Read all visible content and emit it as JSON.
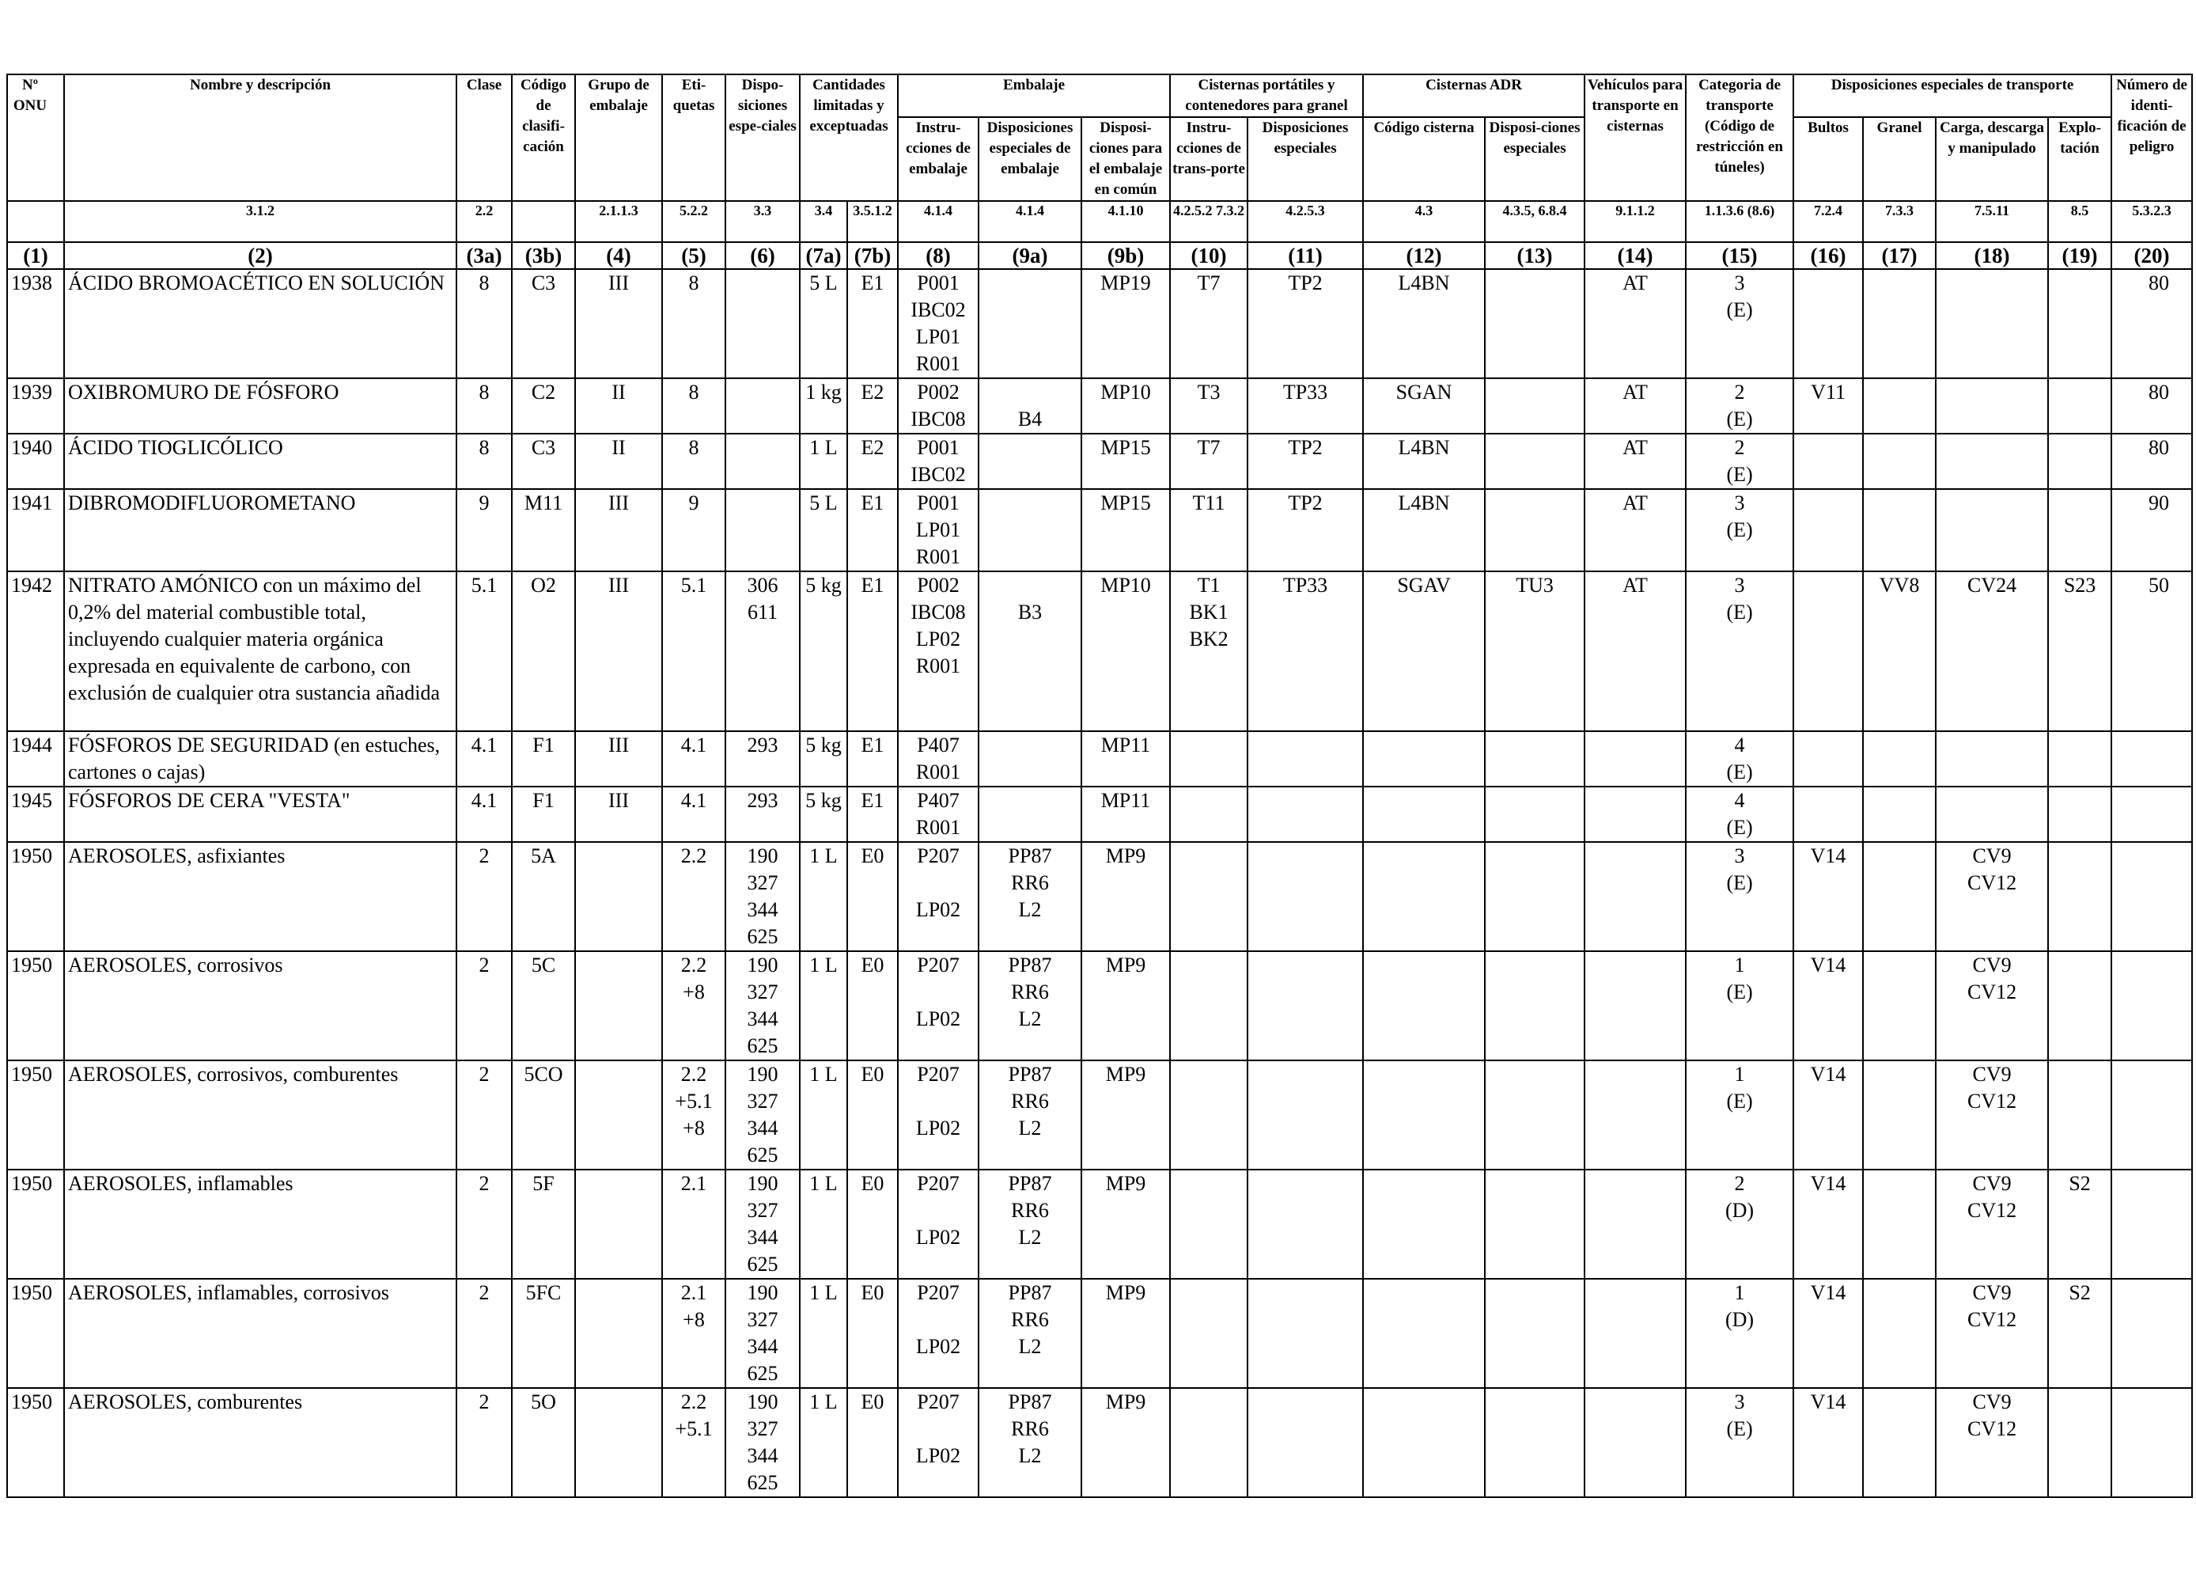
{
  "headers": {
    "un_no": "Nº ONU",
    "name": "Nombre y descripción",
    "name_ref": "3.1.2",
    "class": "Clase",
    "class_ref": "2.2",
    "class_code": "Código de clasifi-cación",
    "packing_group": "Grupo de embalaje",
    "packing_group_ref": "2.1.1.3",
    "labels": "Eti-quetas",
    "labels_ref": "5.2.2",
    "special_prov": "Dispo-siciones espe-ciales",
    "special_prov_ref": "3.3",
    "lq_eq": "Cantidades limitadas y exceptuadas",
    "lq_ref": "3.4",
    "eq_ref": "3.5.1.2",
    "packaging": "Embalaje",
    "pack_instr": "Instru-cciones de embalaje",
    "pack_instr_ref": "4.1.4",
    "pack_special": "Disposiciones especiales de embalaje",
    "pack_special_ref": "4.1.4",
    "mixed_pack": "Disposi-ciones para el embalaje en común",
    "mixed_pack_ref": "4.1.10",
    "portable_tanks": "Cisternas portátiles y contenedores para granel",
    "pt_instr": "Instru-cciones de trans-porte",
    "pt_instr_ref": "4.2.5.2 7.3.2",
    "pt_special": "Disposiciones especiales",
    "pt_special_ref": "4.2.5.3",
    "adr_tanks": "Cisternas ADR",
    "tank_code": "Código cisterna",
    "tank_code_ref": "4.3",
    "tank_special": "Disposi-ciones especiales",
    "tank_special_ref": "4.3.5, 6.8.4",
    "vehicle": "Vehículos para transporte en cisternas",
    "vehicle_ref": "9.1.1.2",
    "transport_cat": "Categoria de transporte (Código de restricción en túneles)",
    "transport_cat_ref": "1.1.3.6 (8.6)",
    "special_transport": "Disposiciones especiales de transporte",
    "packages": "Bultos",
    "packages_ref": "7.2.4",
    "bulk": "Granel",
    "bulk_ref": "7.3.3",
    "loading": "Carga, descarga y manipulado",
    "loading_ref": "7.5.11",
    "operation": "Explo-tación",
    "operation_ref": "8.5",
    "hazard_id": "Número de identi-ficación de peligro",
    "hazard_id_ref": "5.3.2.3"
  },
  "column_numbers": [
    "(1)",
    "(2)",
    "(3a)",
    "(3b)",
    "(4)",
    "(5)",
    "(6)",
    "(7a)",
    "(7b)",
    "(8)",
    "(9a)",
    "(9b)",
    "(10)",
    "(11)",
    "(12)",
    "(13)",
    "(14)",
    "(15)",
    "(16)",
    "(17)",
    "(18)",
    "(19)",
    "(20)"
  ],
  "rows": [
    {
      "un": "1938",
      "name": [
        "ÁCIDO BROMOACÉTICO EN SOLUCIÓN"
      ],
      "cls": "8",
      "code": "C3",
      "pg": "III",
      "lbl": [
        "8"
      ],
      "sp": [],
      "lq": "5 L",
      "eq": "E1",
      "pi": [
        "P001",
        "IBC02",
        "LP01",
        "R001"
      ],
      "psp": [],
      "mp": "MP19",
      "pti": [
        "T7"
      ],
      "ptsp": "TP2",
      "tc": "L4BN",
      "tsp": "",
      "veh": "AT",
      "tcat": [
        "3",
        "(E)"
      ],
      "pkg": "",
      "blk": "",
      "ld": [],
      "op": "",
      "hin": "80"
    },
    {
      "un": "1939",
      "name": [
        "OXIBROMURO DE FÓSFORO"
      ],
      "cls": "8",
      "code": "C2",
      "pg": "II",
      "lbl": [
        "8"
      ],
      "sp": [],
      "lq": "1 kg",
      "eq": "E2",
      "pi": [
        "P002",
        "IBC08"
      ],
      "psp": [
        "",
        "B4"
      ],
      "mp": "MP10",
      "pti": [
        "T3"
      ],
      "ptsp": "TP33",
      "tc": "SGAN",
      "tsp": "",
      "veh": "AT",
      "tcat": [
        "2",
        "(E)"
      ],
      "pkg": "V11",
      "blk": "",
      "ld": [],
      "op": "",
      "hin": "80"
    },
    {
      "un": "1940",
      "name": [
        "ÁCIDO TIOGLICÓLICO"
      ],
      "cls": "8",
      "code": "C3",
      "pg": "II",
      "lbl": [
        "8"
      ],
      "sp": [],
      "lq": "1 L",
      "eq": "E2",
      "pi": [
        "P001",
        "IBC02"
      ],
      "psp": [],
      "mp": "MP15",
      "pti": [
        "T7"
      ],
      "ptsp": "TP2",
      "tc": "L4BN",
      "tsp": "",
      "veh": "AT",
      "tcat": [
        "2",
        "(E)"
      ],
      "pkg": "",
      "blk": "",
      "ld": [],
      "op": "",
      "hin": "80"
    },
    {
      "un": "1941",
      "name": [
        "DIBROMODIFLUOROMETANO"
      ],
      "cls": "9",
      "code": "M11",
      "pg": "III",
      "lbl": [
        "9"
      ],
      "sp": [],
      "lq": "5 L",
      "eq": "E1",
      "pi": [
        "P001",
        "LP01",
        "R001"
      ],
      "psp": [],
      "mp": "MP15",
      "pti": [
        "T11"
      ],
      "ptsp": "TP2",
      "tc": "L4BN",
      "tsp": "",
      "veh": "AT",
      "tcat": [
        "3",
        "(E)"
      ],
      "pkg": "",
      "blk": "",
      "ld": [],
      "op": "",
      "hin": "90"
    },
    {
      "un": "1942",
      "name": [
        "NITRATO AMÓNICO con un máximo del",
        "0,2% del material combustible total,",
        "incluyendo cualquier materia orgánica",
        "expresada en equivalente de carbono, con",
        "exclusión de cualquier otra sustancia añadida"
      ],
      "cls": "5.1",
      "code": "O2",
      "pg": "III",
      "lbl": [
        "5.1"
      ],
      "sp": [
        "306",
        "611"
      ],
      "lq": "5 kg",
      "eq": "E1",
      "pi": [
        "P002",
        "IBC08",
        "LP02",
        "R001"
      ],
      "psp": [
        "",
        "B3"
      ],
      "mp": "MP10",
      "pti": [
        "T1",
        "BK1",
        "BK2"
      ],
      "ptsp": "TP33",
      "tc": "SGAV",
      "tsp": "TU3",
      "veh": "AT",
      "tcat": [
        "3",
        "(E)"
      ],
      "pkg": "",
      "blk": "VV8",
      "ld": [
        "CV24"
      ],
      "op": "S23",
      "hin": "50"
    },
    {
      "un": "1944",
      "name": [
        "FÓSFOROS DE SEGURIDAD (en estuches,",
        "cartones o cajas)"
      ],
      "cls": "4.1",
      "code": "F1",
      "pg": "III",
      "lbl": [
        "4.1"
      ],
      "sp": [
        "293"
      ],
      "lq": "5 kg",
      "eq": "E1",
      "pi": [
        "P407",
        "R001"
      ],
      "psp": [],
      "mp": "MP11",
      "pti": [],
      "ptsp": "",
      "tc": "",
      "tsp": "",
      "veh": "",
      "tcat": [
        "4",
        "(E)"
      ],
      "pkg": "",
      "blk": "",
      "ld": [],
      "op": "",
      "hin": ""
    },
    {
      "un": "1945",
      "name": [
        "FÓSFOROS DE CERA \"VESTA\""
      ],
      "cls": "4.1",
      "code": "F1",
      "pg": "III",
      "lbl": [
        "4.1"
      ],
      "sp": [
        "293"
      ],
      "lq": "5 kg",
      "eq": "E1",
      "pi": [
        "P407",
        "R001"
      ],
      "psp": [],
      "mp": "MP11",
      "pti": [],
      "ptsp": "",
      "tc": "",
      "tsp": "",
      "veh": "",
      "tcat": [
        "4",
        "(E)"
      ],
      "pkg": "",
      "blk": "",
      "ld": [],
      "op": "",
      "hin": ""
    },
    {
      "un": "1950",
      "name": [
        "AEROSOLES, asfixiantes"
      ],
      "cls": "2",
      "code": "5A",
      "pg": "",
      "lbl": [
        "2.2"
      ],
      "sp": [
        "190",
        "327",
        "344",
        "625"
      ],
      "lq": "1 L",
      "eq": "E0",
      "pi": [
        "P207",
        "",
        "LP02"
      ],
      "psp": [
        "PP87",
        "RR6",
        "L2"
      ],
      "mp": "MP9",
      "pti": [],
      "ptsp": "",
      "tc": "",
      "tsp": "",
      "veh": "",
      "tcat": [
        "3",
        "(E)"
      ],
      "pkg": "V14",
      "blk": "",
      "ld": [
        "CV9",
        "CV12"
      ],
      "op": "",
      "hin": ""
    },
    {
      "un": "1950",
      "name": [
        "AEROSOLES, corrosivos"
      ],
      "cls": "2",
      "code": "5C",
      "pg": "",
      "lbl": [
        "2.2",
        "+8"
      ],
      "sp": [
        "190",
        "327",
        "344",
        "625"
      ],
      "lq": "1 L",
      "eq": "E0",
      "pi": [
        "P207",
        "",
        "LP02"
      ],
      "psp": [
        "PP87",
        "RR6",
        "L2"
      ],
      "mp": "MP9",
      "pti": [],
      "ptsp": "",
      "tc": "",
      "tsp": "",
      "veh": "",
      "tcat": [
        "1",
        "(E)"
      ],
      "pkg": "V14",
      "blk": "",
      "ld": [
        "CV9",
        "CV12"
      ],
      "op": "",
      "hin": ""
    },
    {
      "un": "1950",
      "name": [
        "AEROSOLES, corrosivos, comburentes"
      ],
      "cls": "2",
      "code": "5CO",
      "pg": "",
      "lbl": [
        "2.2",
        "+5.1",
        "+8"
      ],
      "sp": [
        "190",
        "327",
        "344",
        "625"
      ],
      "lq": "1 L",
      "eq": "E0",
      "pi": [
        "P207",
        "",
        "LP02"
      ],
      "psp": [
        "PP87",
        "RR6",
        "L2"
      ],
      "mp": "MP9",
      "pti": [],
      "ptsp": "",
      "tc": "",
      "tsp": "",
      "veh": "",
      "tcat": [
        "1",
        "(E)"
      ],
      "pkg": "V14",
      "blk": "",
      "ld": [
        "CV9",
        "CV12"
      ],
      "op": "",
      "hin": ""
    },
    {
      "un": "1950",
      "name": [
        "AEROSOLES, inflamables"
      ],
      "cls": "2",
      "code": "5F",
      "pg": "",
      "lbl": [
        "2.1"
      ],
      "sp": [
        "190",
        "327",
        "344",
        "625"
      ],
      "lq": "1 L",
      "eq": "E0",
      "pi": [
        "P207",
        "",
        "LP02"
      ],
      "psp": [
        "PP87",
        "RR6",
        "L2"
      ],
      "mp": "MP9",
      "pti": [],
      "ptsp": "",
      "tc": "",
      "tsp": "",
      "veh": "",
      "tcat": [
        "2",
        "(D)"
      ],
      "pkg": "V14",
      "blk": "",
      "ld": [
        "CV9",
        "CV12"
      ],
      "op": "S2",
      "hin": ""
    },
    {
      "un": "1950",
      "name": [
        "AEROSOLES, inflamables, corrosivos"
      ],
      "cls": "2",
      "code": "5FC",
      "pg": "",
      "lbl": [
        "2.1",
        "+8"
      ],
      "sp": [
        "190",
        "327",
        "344",
        "625"
      ],
      "lq": "1 L",
      "eq": "E0",
      "pi": [
        "P207",
        "",
        "LP02"
      ],
      "psp": [
        "PP87",
        "RR6",
        "L2"
      ],
      "mp": "MP9",
      "pti": [],
      "ptsp": "",
      "tc": "",
      "tsp": "",
      "veh": "",
      "tcat": [
        "1",
        "(D)"
      ],
      "pkg": "V14",
      "blk": "",
      "ld": [
        "CV9",
        "CV12"
      ],
      "op": "S2",
      "hin": ""
    },
    {
      "un": "1950",
      "name": [
        "AEROSOLES, comburentes"
      ],
      "cls": "2",
      "code": "5O",
      "pg": "",
      "lbl": [
        "2.2",
        "+5.1"
      ],
      "sp": [
        "190",
        "327",
        "344",
        "625"
      ],
      "lq": "1 L",
      "eq": "E0",
      "pi": [
        "P207",
        "",
        "LP02"
      ],
      "psp": [
        "PP87",
        "RR6",
        "L2"
      ],
      "mp": "MP9",
      "pti": [],
      "ptsp": "",
      "tc": "",
      "tsp": "",
      "veh": "",
      "tcat": [
        "3",
        "(E)"
      ],
      "pkg": "V14",
      "blk": "",
      "ld": [
        "CV9",
        "CV12"
      ],
      "op": "",
      "hin": ""
    }
  ]
}
